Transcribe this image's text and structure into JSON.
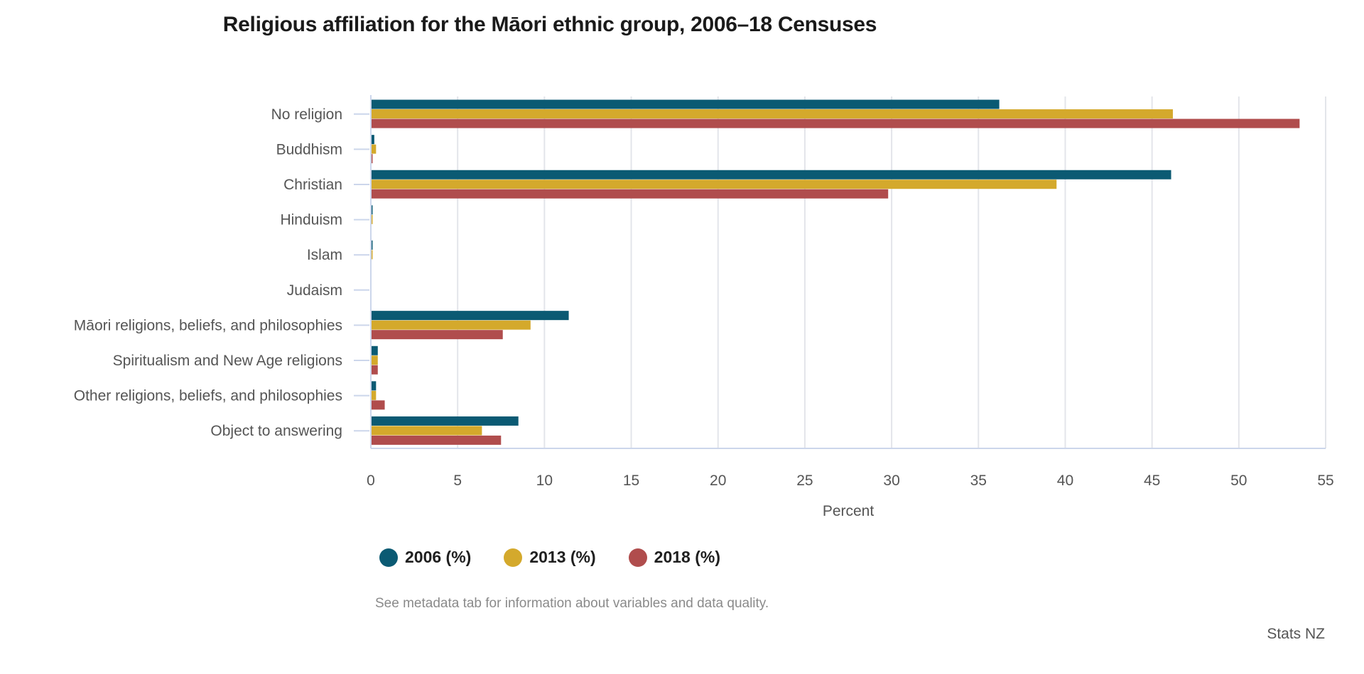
{
  "title": "Religious affiliation for the Māori ethnic group, 2006–18 Censuses",
  "note": "See metadata tab for information about variables and data quality.",
  "credit": "Stats NZ",
  "chart_data": {
    "type": "bar",
    "orientation": "horizontal",
    "title": "Religious affiliation for the Māori ethnic group, 2006–18 Censuses",
    "xlabel": "Percent",
    "ylabel": "",
    "xlim": [
      0,
      55
    ],
    "xticks": [
      0,
      5,
      10,
      15,
      20,
      25,
      30,
      35,
      40,
      45,
      50,
      55
    ],
    "grid": true,
    "legend_position": "bottom",
    "categories": [
      "No religion",
      "Buddhism",
      "Christian",
      "Hinduism",
      "Islam",
      "Judaism",
      "Māori religions, beliefs, and philosophies",
      "Spiritualism and New Age religions",
      "Other religions, beliefs, and philosophies",
      "Object to answering"
    ],
    "series": [
      {
        "name": "2006 (%)",
        "color": "#0b5a73",
        "values": [
          36.2,
          0.2,
          46.1,
          0.1,
          0.1,
          0.0,
          11.4,
          0.4,
          0.3,
          8.5
        ]
      },
      {
        "name": "2013 (%)",
        "color": "#d4a92c",
        "values": [
          46.2,
          0.3,
          39.5,
          0.1,
          0.1,
          0.0,
          9.2,
          0.4,
          0.3,
          6.4
        ]
      },
      {
        "name": "2018 (%)",
        "color": "#b04d4d",
        "values": [
          53.5,
          0.1,
          29.8,
          0.0,
          0.0,
          0.0,
          7.6,
          0.4,
          0.8,
          7.5
        ]
      }
    ]
  }
}
